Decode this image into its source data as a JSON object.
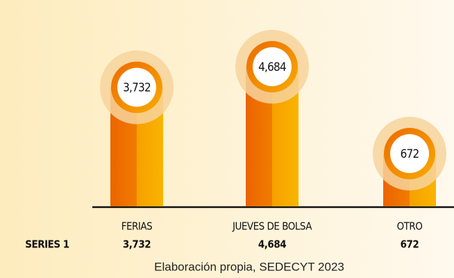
{
  "chart_data": {
    "type": "bar",
    "categories": [
      "FERIAS",
      "JUEVES DE BOLSA",
      "OTRO"
    ],
    "series": [
      {
        "name": "SERIES 1",
        "color": "#f07c00",
        "values": [
          3732,
          4684,
          672
        ],
        "value_labels": [
          "3,732",
          "4,684",
          "672"
        ]
      }
    ],
    "source": "Elaboración propia, SEDECYT 2023"
  }
}
